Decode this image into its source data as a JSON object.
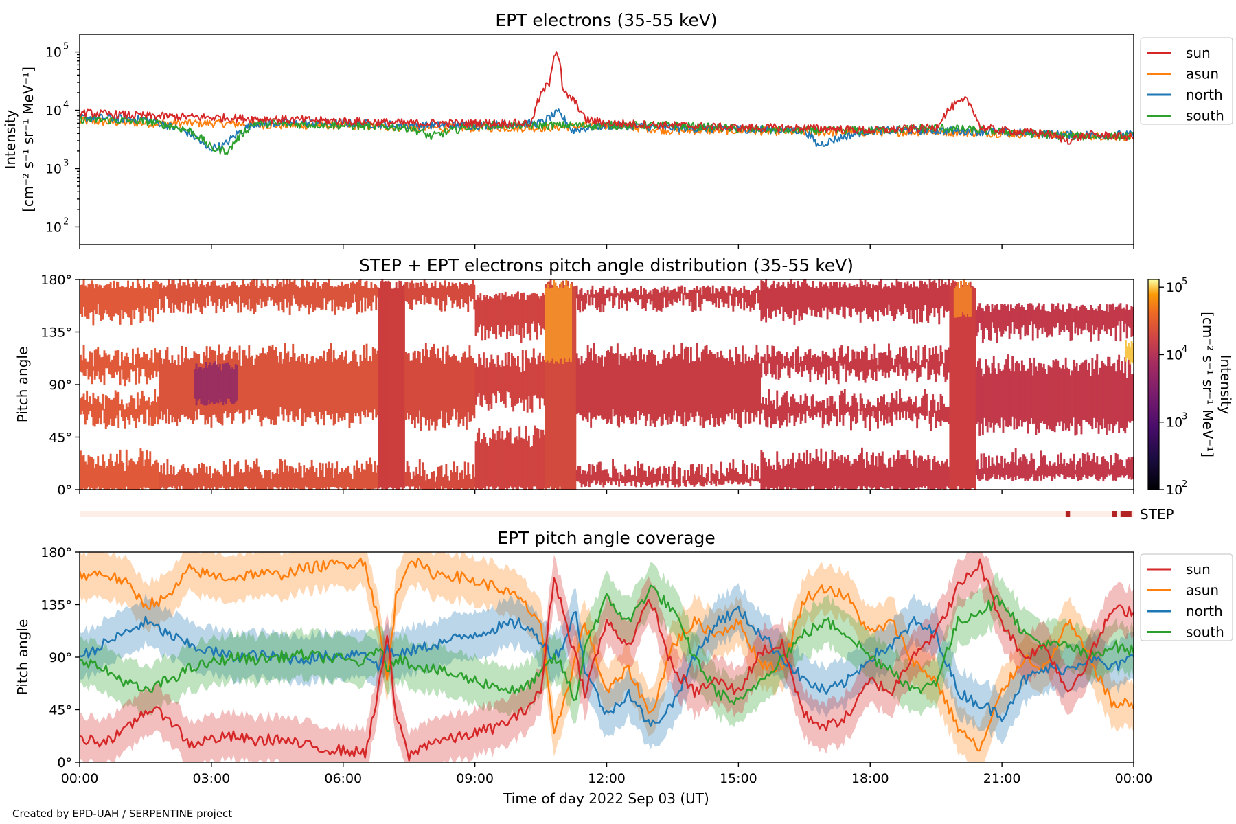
{
  "figure": {
    "footer": "Created by EPD-UAH / SERPENTINE project",
    "xlabel": "Time of day 2022 Sep 03 (UT)",
    "x_tick_labels": [
      "00:00",
      "03:00",
      "06:00",
      "09:00",
      "12:00",
      "15:00",
      "18:00",
      "21:00",
      "00:00"
    ]
  },
  "colors": {
    "sun": "#d62728",
    "asun": "#ff7f0e",
    "north": "#1f77b4",
    "south": "#2ca02c",
    "step": "#b22222",
    "step_empty": "#fdeee8"
  },
  "chart_data": [
    {
      "type": "line",
      "title": "EPT electrons (35-55 keV)",
      "ylabel": [
        "Intensity",
        "[cm⁻² s⁻¹ sr⁻¹ MeV⁻¹]"
      ],
      "yscale": "log",
      "ylim": [
        50,
        200000
      ],
      "y_tick_labels": [
        "10",
        "10",
        "10",
        "10"
      ],
      "y_tick_exponents": [
        "2",
        "3",
        "4",
        "5"
      ],
      "x_range_hours": [
        0,
        24
      ],
      "legend_position": "outside-right",
      "legend": [
        "sun",
        "asun",
        "north",
        "south"
      ],
      "series": [
        {
          "name": "sun",
          "x": [
            0,
            1.5,
            3,
            4.5,
            6,
            7.5,
            9,
            10.3,
            10.7,
            10.85,
            11,
            11.2,
            11.5,
            12,
            13.5,
            15,
            16.5,
            18,
            19.5,
            19.9,
            20.2,
            20.5,
            21,
            22,
            22.5,
            23,
            24
          ],
          "y": [
            9000,
            8000,
            7500,
            7000,
            6500,
            6000,
            6000,
            6000,
            30000,
            110000,
            20000,
            16000,
            7000,
            6000,
            5500,
            5000,
            5000,
            4500,
            5000,
            12000,
            15000,
            5000,
            4500,
            4000,
            3000,
            3800,
            3500
          ]
        },
        {
          "name": "asun",
          "x": [
            0,
            1.5,
            3,
            4.5,
            6,
            7.5,
            9,
            10.5,
            12,
            13.5,
            15,
            16.5,
            18,
            19.5,
            21,
            22.5,
            24
          ],
          "y": [
            6500,
            6000,
            6000,
            5500,
            5500,
            5000,
            5000,
            5000,
            5500,
            4500,
            4500,
            4200,
            4200,
            4300,
            4000,
            3700,
            3500
          ]
        },
        {
          "name": "north",
          "x": [
            0,
            1.5,
            2.5,
            2.9,
            3.3,
            4,
            6,
            7.5,
            9,
            10.5,
            10.9,
            11.2,
            12,
            13.5,
            15,
            16.5,
            16.8,
            18,
            19.5,
            21,
            22.5,
            24
          ],
          "y": [
            7500,
            7000,
            4000,
            2200,
            2500,
            6000,
            6000,
            5500,
            5500,
            6000,
            9000,
            4500,
            5500,
            5000,
            4800,
            4500,
            2500,
            4500,
            4500,
            4200,
            3800,
            3800
          ]
        },
        {
          "name": "south",
          "x": [
            0,
            1.5,
            2.5,
            3,
            3.4,
            4,
            6,
            7.5,
            8,
            9,
            10.5,
            12,
            13.5,
            15,
            16.5,
            18,
            19.5,
            21,
            22.5,
            24
          ],
          "y": [
            7000,
            6500,
            4500,
            2200,
            2000,
            6000,
            5500,
            5000,
            3500,
            5500,
            5500,
            5500,
            5500,
            4800,
            4500,
            4500,
            5000,
            4300,
            3600,
            3600
          ]
        }
      ]
    },
    {
      "type": "heatmap",
      "title": "STEP + EPT electrons pitch angle distribution (35-55 keV)",
      "ylabel": "Pitch angle",
      "ylim": [
        0,
        180
      ],
      "y_tick_labels": [
        "0°",
        "45°",
        "90°",
        "135°",
        "180°"
      ],
      "x_range_hours": [
        0,
        24
      ],
      "colorbar": {
        "label": [
          "Intensity",
          "[cm⁻² s⁻¹ sr⁻¹ MeV⁻¹]"
        ],
        "scale": "log",
        "range": [
          100,
          130000
        ],
        "tick_labels": [
          "10",
          "10",
          "10",
          "10"
        ],
        "tick_exponents": [
          "2",
          "3",
          "4",
          "5"
        ]
      },
      "bands": [
        {
          "x0": 0.0,
          "x1": 1.8,
          "lo": 0,
          "hi": 180,
          "holes": [
            [
              30,
              60
            ],
            [
              82,
              98
            ],
            [
              120,
              150
            ]
          ],
          "color": "#e05a3a"
        },
        {
          "x0": 1.8,
          "x1": 6.8,
          "lo": 0,
          "hi": 180,
          "holes": [
            [
              22,
              62
            ],
            [
              120,
              158
            ]
          ],
          "color": "#d9543b"
        },
        {
          "x0": 2.6,
          "x1": 3.6,
          "lo": 75,
          "hi": 110,
          "holes": [],
          "color": "#9a2f60"
        },
        {
          "x0": 6.8,
          "x1": 7.4,
          "lo": 0,
          "hi": 180,
          "holes": [],
          "color": "#cc3d3d"
        },
        {
          "x0": 7.4,
          "x1": 9.0,
          "lo": 0,
          "hi": 180,
          "holes": [
            [
              20,
              60
            ],
            [
              120,
              160
            ]
          ],
          "color": "#d44a3d"
        },
        {
          "x0": 9.0,
          "x1": 10.6,
          "lo": 0,
          "hi": 170,
          "holes": [
            [
              50,
              75
            ],
            [
              115,
              135
            ]
          ],
          "color": "#cf4340"
        },
        {
          "x0": 10.6,
          "x1": 11.3,
          "lo": 0,
          "hi": 180,
          "holes": [],
          "color": "#d24a3e"
        },
        {
          "x0": 10.6,
          "x1": 11.2,
          "lo": 110,
          "hi": 180,
          "holes": [],
          "color": "#f08a2a"
        },
        {
          "x0": 11.3,
          "x1": 15.5,
          "lo": 5,
          "hi": 175,
          "holes": [
            [
              20,
              60
            ],
            [
              120,
              160
            ]
          ],
          "color": "#c63c42"
        },
        {
          "x0": 15.5,
          "x1": 19.8,
          "lo": 0,
          "hi": 180,
          "holes": [
            [
              30,
              60
            ],
            [
              80,
              100
            ],
            [
              120,
              150
            ]
          ],
          "color": "#c53a44"
        },
        {
          "x0": 19.8,
          "x1": 20.4,
          "lo": 0,
          "hi": 180,
          "holes": [],
          "color": "#cc3e40"
        },
        {
          "x0": 19.9,
          "x1": 20.3,
          "lo": 150,
          "hi": 180,
          "holes": [],
          "color": "#ee7a2c"
        },
        {
          "x0": 20.4,
          "x1": 24.0,
          "lo": 10,
          "hi": 160,
          "holes": [
            [
              30,
              55
            ],
            [
              110,
              135
            ]
          ],
          "color": "#c2394a"
        },
        {
          "x0": 23.8,
          "x1": 24.0,
          "lo": 110,
          "hi": 130,
          "holes": [],
          "color": "#f6c54a"
        }
      ]
    },
    {
      "type": "table",
      "title": "STEP",
      "x_range_hours": [
        0,
        24
      ],
      "coverage_segments": [
        [
          22.45,
          22.55
        ],
        [
          23.5,
          23.62
        ],
        [
          23.7,
          23.95
        ]
      ]
    },
    {
      "type": "line",
      "title": "EPT pitch angle coverage",
      "ylabel": "Pitch angle",
      "ylim": [
        0,
        180
      ],
      "y_tick_labels": [
        "0°",
        "45°",
        "90°",
        "135°",
        "180°"
      ],
      "x_range_hours": [
        0,
        24
      ],
      "legend_position": "outside-right",
      "legend": [
        "sun",
        "asun",
        "north",
        "south"
      ],
      "band_halfwidth_deg": 20,
      "series": [
        {
          "name": "sun",
          "x": [
            0,
            0.5,
            1,
            1.5,
            2,
            2.5,
            3,
            3.5,
            4,
            4.5,
            5,
            5.5,
            6,
            6.5,
            6.8,
            7,
            7.2,
            7.5,
            8,
            8.5,
            9,
            9.5,
            10,
            10.5,
            10.8,
            11,
            11.3,
            11.5,
            12,
            12.5,
            13,
            13.5,
            14,
            14.5,
            15,
            15.5,
            16,
            16.5,
            17,
            17.5,
            18,
            18.5,
            19,
            19.5,
            20,
            20.5,
            21,
            21.5,
            22,
            22.5,
            23,
            23.5,
            24
          ],
          "y": [
            20,
            18,
            25,
            45,
            40,
            15,
            20,
            22,
            18,
            20,
            15,
            12,
            10,
            8,
            60,
            110,
            40,
            5,
            18,
            20,
            25,
            30,
            40,
            60,
            160,
            130,
            90,
            60,
            120,
            100,
            140,
            80,
            60,
            70,
            60,
            95,
            100,
            40,
            30,
            40,
            70,
            60,
            95,
            110,
            150,
            170,
            120,
            90,
            100,
            60,
            90,
            130,
            130
          ]
        },
        {
          "name": "asun",
          "x": [
            0,
            0.5,
            1,
            1.5,
            2,
            2.5,
            3,
            3.5,
            4,
            4.5,
            5,
            5.5,
            6,
            6.5,
            6.8,
            7,
            7.2,
            7.5,
            8,
            8.5,
            9,
            9.5,
            10,
            10.5,
            10.8,
            11,
            11.3,
            11.5,
            12,
            12.5,
            13,
            13.5,
            14,
            14.5,
            15,
            15.5,
            16,
            16.5,
            17,
            17.5,
            18,
            18.5,
            19,
            19.5,
            20,
            20.5,
            21,
            21.5,
            22,
            22.5,
            23,
            23.5,
            24
          ],
          "y": [
            160,
            162,
            155,
            135,
            140,
            165,
            160,
            158,
            162,
            160,
            165,
            168,
            170,
            172,
            120,
            70,
            140,
            175,
            162,
            160,
            155,
            150,
            140,
            120,
            20,
            50,
            90,
            120,
            60,
            80,
            40,
            100,
            120,
            110,
            120,
            85,
            80,
            140,
            150,
            140,
            110,
            120,
            85,
            70,
            30,
            10,
            60,
            90,
            80,
            120,
            90,
            50,
            50
          ]
        },
        {
          "name": "north",
          "x": [
            0,
            0.5,
            1,
            1.5,
            2,
            2.5,
            3,
            3.5,
            4,
            4.5,
            5,
            5.5,
            6,
            6.5,
            6.8,
            7,
            7.2,
            7.5,
            8,
            8.5,
            9,
            9.5,
            10,
            10.5,
            10.8,
            11,
            11.3,
            11.5,
            12,
            12.5,
            13,
            13.5,
            14,
            14.5,
            15,
            15.5,
            16,
            16.5,
            17,
            17.5,
            18,
            18.5,
            19,
            19.5,
            20,
            20.5,
            21,
            21.5,
            22,
            22.5,
            23,
            23.5,
            24
          ],
          "y": [
            90,
            100,
            110,
            120,
            110,
            100,
            95,
            90,
            92,
            90,
            88,
            90,
            92,
            95,
            80,
            100,
            90,
            95,
            100,
            105,
            110,
            115,
            120,
            105,
            90,
            100,
            130,
            80,
            40,
            60,
            30,
            50,
            90,
            120,
            130,
            110,
            90,
            70,
            60,
            70,
            90,
            100,
            120,
            110,
            60,
            50,
            40,
            70,
            80,
            80,
            90,
            80,
            90
          ]
        },
        {
          "name": "south",
          "x": [
            0,
            0.5,
            1,
            1.5,
            2,
            2.5,
            3,
            3.5,
            4,
            4.5,
            5,
            5.5,
            6,
            6.5,
            6.8,
            7,
            7.2,
            7.5,
            8,
            8.5,
            9,
            9.5,
            10,
            10.5,
            10.8,
            11,
            11.3,
            11.5,
            12,
            12.5,
            13,
            13.5,
            14,
            14.5,
            15,
            15.5,
            16,
            16.5,
            17,
            17.5,
            18,
            18.5,
            19,
            19.5,
            20,
            20.5,
            21,
            21.5,
            22,
            22.5,
            23,
            23.5,
            24
          ],
          "y": [
            90,
            80,
            70,
            60,
            70,
            80,
            85,
            90,
            88,
            90,
            92,
            90,
            88,
            85,
            100,
            80,
            90,
            85,
            80,
            75,
            70,
            65,
            60,
            75,
            90,
            80,
            50,
            100,
            140,
            120,
            150,
            130,
            90,
            60,
            50,
            70,
            90,
            110,
            120,
            110,
            90,
            80,
            60,
            70,
            120,
            130,
            140,
            110,
            100,
            100,
            90,
            100,
            95
          ]
        }
      ]
    }
  ]
}
